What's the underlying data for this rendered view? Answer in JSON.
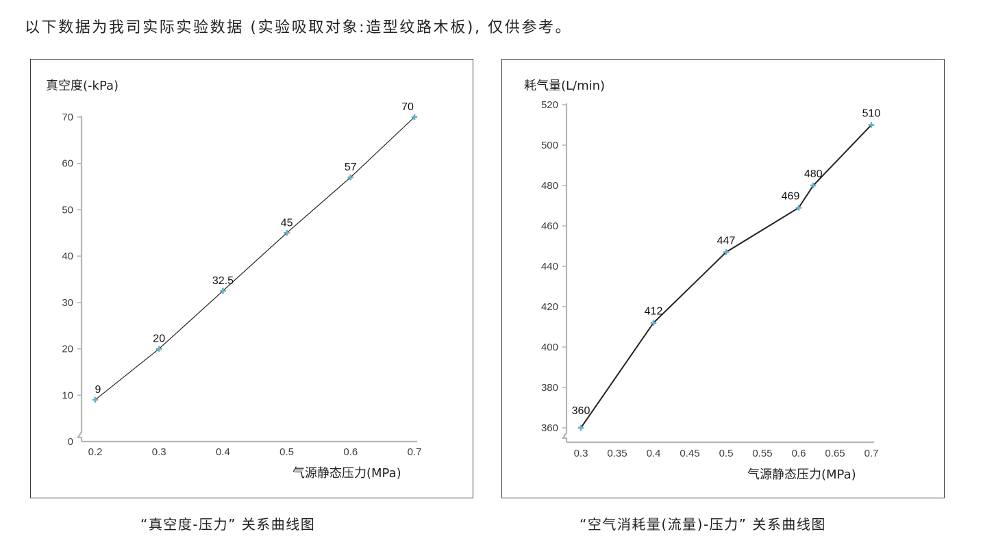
{
  "intro": "以下数据为我司实际实验数据 (实验吸取对象:造型纹路木板), 仅供参考。",
  "colors": {
    "marker": "#6aaec9",
    "axis": "#b5b5b5",
    "line": "#222222",
    "frame": "#3a3a3a"
  },
  "chart_data": [
    {
      "type": "line",
      "caption": "“真空度-压力” 关系曲线图",
      "ylabel": "真空度(-kPa)",
      "xlabel": "气源静态压力(MPa)",
      "x_ticks": [
        "0.2",
        "0.3",
        "0.4",
        "0.5",
        "0.6",
        "0.7"
      ],
      "y_ticks": [
        "0",
        "10",
        "20",
        "30",
        "40",
        "50",
        "60",
        "70"
      ],
      "xlim": [
        0.2,
        0.7
      ],
      "ylim": [
        0,
        70
      ],
      "x": [
        0.2,
        0.3,
        0.4,
        0.5,
        0.6,
        0.7
      ],
      "values": [
        9,
        20,
        32.5,
        45,
        57,
        70
      ],
      "data_labels": [
        "9",
        "20",
        "32.5",
        "45",
        "57",
        "70"
      ],
      "axis_break": true
    },
    {
      "type": "line",
      "caption": "“空气消耗量(流量)-压力” 关系曲线图",
      "ylabel": "耗气量(L/min)",
      "xlabel": "气源静态压力(MPa)",
      "x_ticks": [
        "0.3",
        "0.35",
        "0.4",
        "0.45",
        "0.5",
        "0.55",
        "0.6",
        "0.65",
        "0.7"
      ],
      "y_ticks": [
        "360",
        "380",
        "400",
        "420",
        "440",
        "460",
        "480",
        "500",
        "520"
      ],
      "xlim": [
        0.3,
        0.7
      ],
      "ylim": [
        360,
        520
      ],
      "x": [
        0.3,
        0.4,
        0.5,
        0.6,
        0.62,
        0.7
      ],
      "values": [
        360,
        412,
        447,
        469,
        480,
        510
      ],
      "data_labels": [
        "360",
        "412",
        "447",
        "469",
        "480",
        "510"
      ],
      "axis_break": true
    }
  ]
}
